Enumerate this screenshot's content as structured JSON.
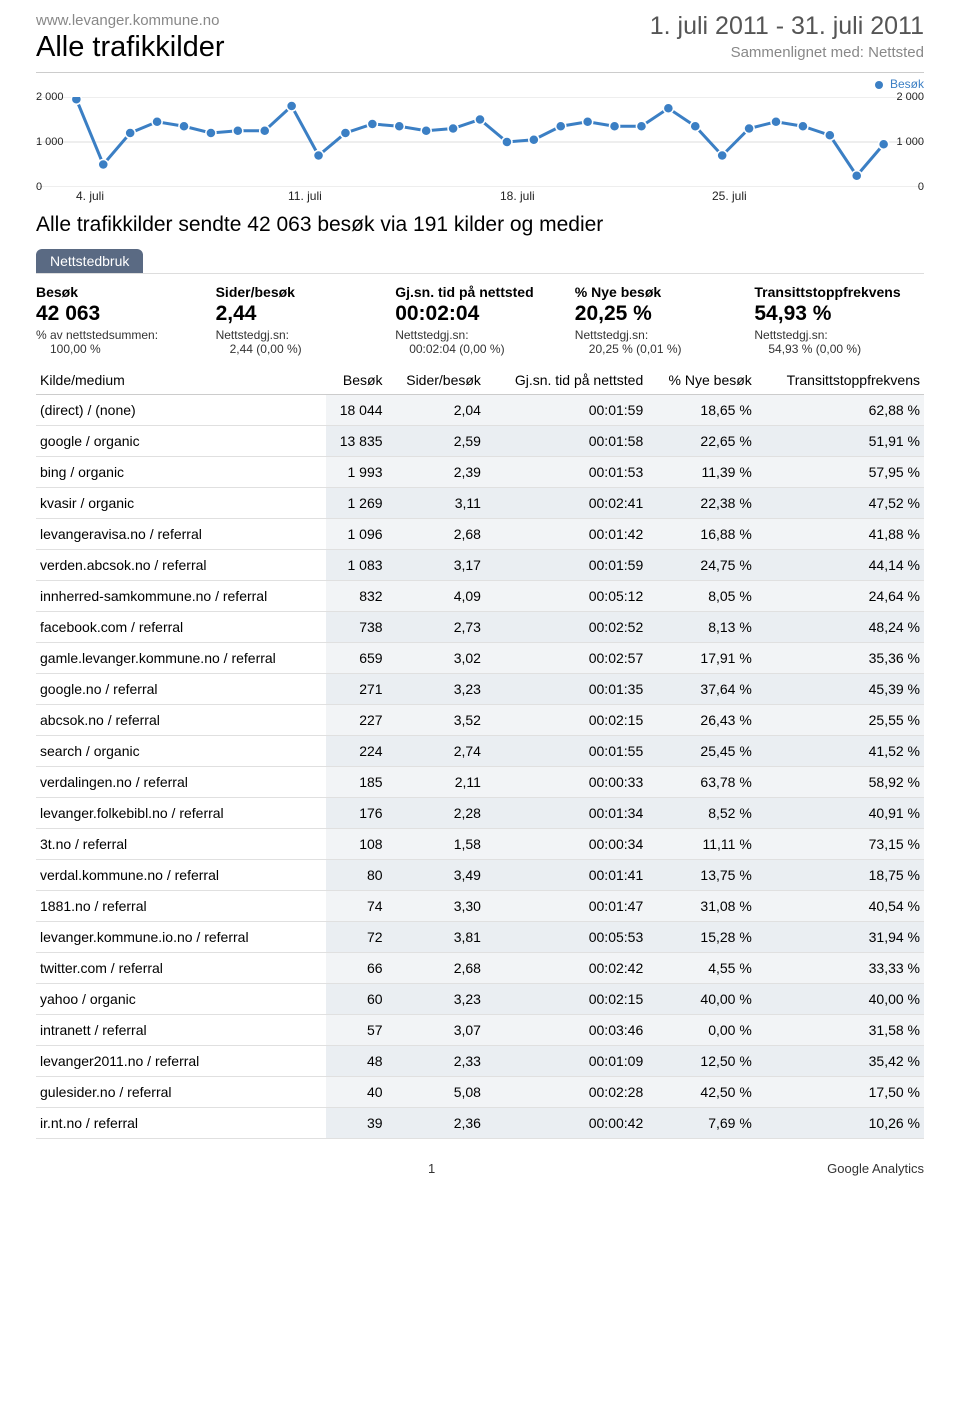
{
  "header": {
    "site_url": "www.levanger.kommune.no",
    "title": "Alle trafikkilder",
    "date_range": "1. juli 2011 - 31. juli 2011",
    "compare": "Sammenlignet med: Nettsted"
  },
  "legend": {
    "label": "Besøk"
  },
  "chart": {
    "type": "line",
    "color": "#3b7fc4",
    "marker_color": "#3b7fc4",
    "marker_border": "#ffffff",
    "line_width": 3,
    "marker_radius": 5,
    "background": "#ffffff",
    "grid_color": "#dddddd",
    "ylim": [
      0,
      2000
    ],
    "yticks": [
      0,
      1000,
      2000
    ],
    "ytick_labels": [
      "0",
      "1 000",
      "2 000"
    ],
    "x_labels": [
      "4. juli",
      "11. juli",
      "18. juli",
      "25. juli"
    ],
    "values": [
      1950,
      500,
      1200,
      1450,
      1350,
      1200,
      1250,
      1250,
      1800,
      700,
      1200,
      1400,
      1350,
      1250,
      1300,
      1500,
      1000,
      1050,
      1350,
      1450,
      1350,
      1350,
      1750,
      1350,
      700,
      1300,
      1450,
      1350,
      1150,
      250,
      950
    ]
  },
  "summary": "Alle trafikkilder sendte 42 063 besøk via 191 kilder og medier",
  "tab": "Nettstedbruk",
  "metrics": [
    {
      "label": "Besøk",
      "value": "42 063",
      "sub1": "% av nettstedsummen:",
      "sub2": "100,00 %"
    },
    {
      "label": "Sider/besøk",
      "value": "2,44",
      "sub1": "Nettstedgj.sn:",
      "sub2": "2,44 (0,00 %)"
    },
    {
      "label": "Gj.sn. tid på nettsted",
      "value": "00:02:04",
      "sub1": "Nettstedgj.sn:",
      "sub2": "00:02:04 (0,00 %)"
    },
    {
      "label": "% Nye besøk",
      "value": "20,25 %",
      "sub1": "Nettstedgj.sn:",
      "sub2": "20,25 % (0,01 %)"
    },
    {
      "label": "Transittstoppfrekvens",
      "value": "54,93 %",
      "sub1": "Nettstedgj.sn:",
      "sub2": "54,93 % (0,00 %)"
    }
  ],
  "table": {
    "columns": [
      "Kilde/medium",
      "Besøk",
      "Sider/besøk",
      "Gj.sn. tid på nettsted",
      "% Nye besøk",
      "Transittstoppfrekvens"
    ],
    "rows": [
      [
        "(direct) / (none)",
        "18 044",
        "2,04",
        "00:01:59",
        "18,65 %",
        "62,88 %"
      ],
      [
        "google / organic",
        "13 835",
        "2,59",
        "00:01:58",
        "22,65 %",
        "51,91 %"
      ],
      [
        "bing / organic",
        "1 993",
        "2,39",
        "00:01:53",
        "11,39 %",
        "57,95 %"
      ],
      [
        "kvasir / organic",
        "1 269",
        "3,11",
        "00:02:41",
        "22,38 %",
        "47,52 %"
      ],
      [
        "levangeravisa.no / referral",
        "1 096",
        "2,68",
        "00:01:42",
        "16,88 %",
        "41,88 %"
      ],
      [
        "verden.abcsok.no / referral",
        "1 083",
        "3,17",
        "00:01:59",
        "24,75 %",
        "44,14 %"
      ],
      [
        "innherred-samkommune.no / referral",
        "832",
        "4,09",
        "00:05:12",
        "8,05 %",
        "24,64 %"
      ],
      [
        "facebook.com / referral",
        "738",
        "2,73",
        "00:02:52",
        "8,13 %",
        "48,24 %"
      ],
      [
        "gamle.levanger.kommune.no / referral",
        "659",
        "3,02",
        "00:02:57",
        "17,91 %",
        "35,36 %"
      ],
      [
        "google.no / referral",
        "271",
        "3,23",
        "00:01:35",
        "37,64 %",
        "45,39 %"
      ],
      [
        "abcsok.no / referral",
        "227",
        "3,52",
        "00:02:15",
        "26,43 %",
        "25,55 %"
      ],
      [
        "search / organic",
        "224",
        "2,74",
        "00:01:55",
        "25,45 %",
        "41,52 %"
      ],
      [
        "verdalingen.no / referral",
        "185",
        "2,11",
        "00:00:33",
        "63,78 %",
        "58,92 %"
      ],
      [
        "levanger.folkebibl.no / referral",
        "176",
        "2,28",
        "00:01:34",
        "8,52 %",
        "40,91 %"
      ],
      [
        "3t.no / referral",
        "108",
        "1,58",
        "00:00:34",
        "11,11 %",
        "73,15 %"
      ],
      [
        "verdal.kommune.no / referral",
        "80",
        "3,49",
        "00:01:41",
        "13,75 %",
        "18,75 %"
      ],
      [
        "1881.no / referral",
        "74",
        "3,30",
        "00:01:47",
        "31,08 %",
        "40,54 %"
      ],
      [
        "levanger.kommune.io.no / referral",
        "72",
        "3,81",
        "00:05:53",
        "15,28 %",
        "31,94 %"
      ],
      [
        "twitter.com / referral",
        "66",
        "2,68",
        "00:02:42",
        "4,55 %",
        "33,33 %"
      ],
      [
        "yahoo / organic",
        "60",
        "3,23",
        "00:02:15",
        "40,00 %",
        "40,00 %"
      ],
      [
        "intranett / referral",
        "57",
        "3,07",
        "00:03:46",
        "0,00 %",
        "31,58 %"
      ],
      [
        "levanger2011.no / referral",
        "48",
        "2,33",
        "00:01:09",
        "12,50 %",
        "35,42 %"
      ],
      [
        "gulesider.no / referral",
        "40",
        "5,08",
        "00:02:28",
        "42,50 %",
        "17,50 %"
      ],
      [
        "ir.nt.no / referral",
        "39",
        "2,36",
        "00:00:42",
        "7,69 %",
        "10,26 %"
      ]
    ]
  },
  "footer": {
    "page": "1",
    "brand": "Google Analytics"
  }
}
